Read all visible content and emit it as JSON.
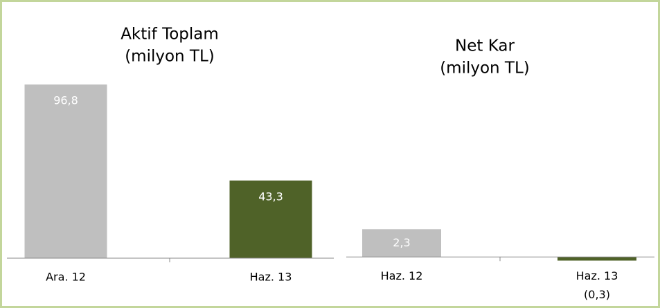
{
  "chart_data": [
    {
      "type": "bar",
      "title": "Aktif Toplam",
      "subtitle": "(milyon TL)",
      "categories": [
        "Ara. 12",
        "Haz. 13"
      ],
      "values": [
        96.8,
        43.3
      ],
      "value_labels": [
        "96,8",
        "43,3"
      ],
      "colors": [
        "#bfbfbf",
        "#4f6228"
      ],
      "ylim": [
        0,
        120
      ]
    },
    {
      "type": "bar",
      "title": "Net Kar",
      "subtitle": "(milyon TL)",
      "categories": [
        "Haz. 12",
        "Haz. 13"
      ],
      "values": [
        2.3,
        -0.3
      ],
      "value_labels": [
        "2,3",
        "(0,3)"
      ],
      "colors": [
        "#bfbfbf",
        "#4f6228"
      ],
      "ylim": [
        -0.5,
        17.3
      ]
    }
  ]
}
